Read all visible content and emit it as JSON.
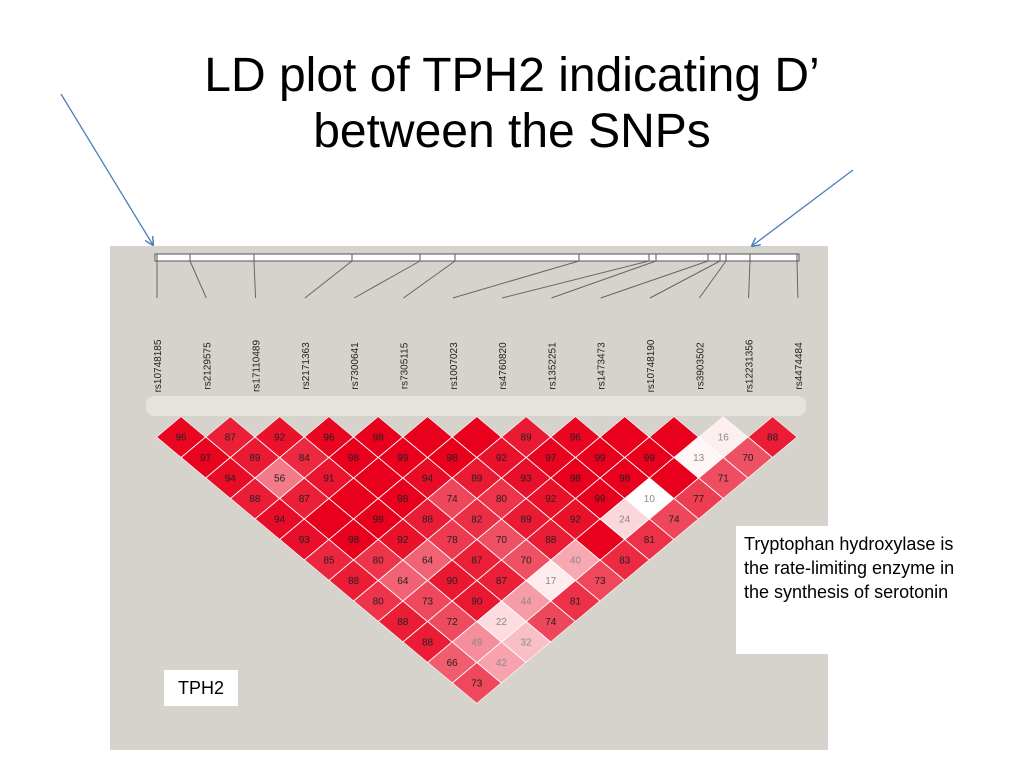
{
  "title": {
    "line1": "LD plot of TPH2 indicating D’",
    "line2": "between the SNPs"
  },
  "gene_label": "TPH2",
  "note": "Tryptophan hydroxylase is the rate-limiting enzyme in the synthesis of serotonin",
  "snps": [
    "rs10748185",
    "rs2129575",
    "rs17110489",
    "rs2171363",
    "rs7300641",
    "rs7305115",
    "rs1007023",
    "rs4760820",
    "rs1352251",
    "rs1473473",
    "rs10748190",
    "rs3903502",
    "rs12231356",
    "rs4474484"
  ],
  "colors": {
    "panel": "#d6d3cd",
    "strong_ld": "#e8001c",
    "weak_ld": "#ffffff",
    "arrow": "#4a7ebb"
  },
  "chart_data": {
    "type": "heatmap",
    "measure": "D'",
    "rows": [
      [
        "96",
        "87",
        "92",
        "96",
        "98",
        "",
        "",
        "89",
        "96",
        "",
        "",
        "16",
        "88"
      ],
      [
        "97",
        "89",
        "84",
        "98",
        "99",
        "98",
        "92",
        "97",
        "99",
        "99",
        "13",
        "70"
      ],
      [
        "94",
        "56",
        "91",
        "",
        "94",
        "89",
        "93",
        "98",
        "98",
        "",
        "71"
      ],
      [
        "88",
        "87",
        "",
        "98",
        "74",
        "80",
        "92",
        "99",
        "10",
        "77"
      ],
      [
        "94",
        "",
        "99",
        "88",
        "82",
        "89",
        "92",
        "24",
        "74"
      ],
      [
        "93",
        "98",
        "92",
        "78",
        "70",
        "88",
        "",
        "81"
      ],
      [
        "85",
        "80",
        "64",
        "87",
        "70",
        "40",
        "83"
      ],
      [
        "88",
        "64",
        "90",
        "87",
        "17",
        "73"
      ],
      [
        "80",
        "73",
        "90",
        "44",
        "81"
      ],
      [
        "88",
        "72",
        "22",
        "74"
      ],
      [
        "88",
        "49",
        "32"
      ],
      [
        "66",
        "42"
      ],
      [
        "73"
      ]
    ]
  }
}
